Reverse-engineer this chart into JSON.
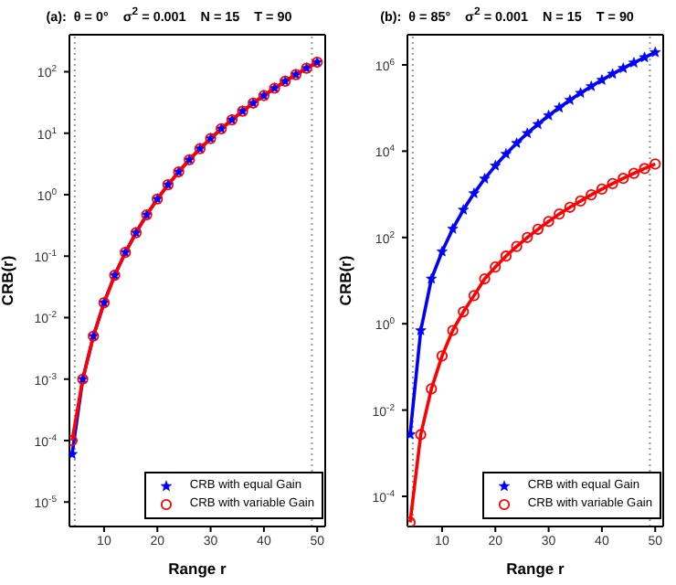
{
  "chart_data": [
    {
      "type": "line",
      "title": "(a):  θ = 0°    σ$^{2}$ = 0.001    N = 15    T = 90",
      "xlabel": "Range  r",
      "ylabel": "CRB(r)",
      "log": "y",
      "legend": "bottom right",
      "line_style": "solid",
      "x": [
        4,
        6,
        8,
        10,
        12,
        14,
        16,
        18,
        20,
        22,
        24,
        26,
        28,
        30,
        32,
        34,
        36,
        38,
        40,
        42,
        44,
        46,
        48,
        50
      ],
      "xlim": [
        3.5,
        51.5
      ],
      "xticks": [
        10,
        20,
        30,
        40,
        50
      ],
      "ylim": [
        4e-06,
        400
      ],
      "yticks": [
        {
          "value": 1e-05,
          "label": "10$^{-5}$"
        },
        {
          "value": 0.0001,
          "label": "10$^{-4}$"
        },
        {
          "value": 0.001,
          "label": "10$^{-3}$"
        },
        {
          "value": 0.01,
          "label": "10$^{-2}$"
        },
        {
          "value": 0.1,
          "label": "10$^{-1}$"
        },
        {
          "value": 1,
          "label": "10$^{0}$"
        },
        {
          "value": 10,
          "label": "10$^{1}$"
        },
        {
          "value": 100,
          "label": "10$^{2}$"
        }
      ],
      "ref_lines": [
        {
          "axis": "x",
          "value": 4.5,
          "color": "#999999",
          "line_style": "dotted"
        },
        {
          "axis": "x",
          "value": 49,
          "color": "#999999",
          "line_style": "dotted"
        }
      ],
      "series": [
        {
          "name": "CRB with equal Gain",
          "color": "#0000ff",
          "marker": "star",
          "values": [
            6e-05,
            0.001,
            0.005,
            0.0175,
            0.049,
            0.115,
            0.24,
            0.47,
            0.85,
            1.45,
            2.35,
            3.7,
            5.6,
            8.2,
            11.8,
            16.5,
            22.8,
            30.9,
            41,
            54,
            70,
            90,
            114,
            143
          ]
        },
        {
          "name": "CRB with variable Gain",
          "color": "#ff0000",
          "marker": "circle",
          "values": [
            0.0001,
            0.001,
            0.005,
            0.0175,
            0.049,
            0.115,
            0.24,
            0.47,
            0.85,
            1.45,
            2.35,
            3.7,
            5.6,
            8.2,
            11.8,
            16.5,
            22.8,
            30.9,
            41,
            54,
            70,
            90,
            114,
            143
          ]
        }
      ]
    },
    {
      "type": "line",
      "title": "(b):  θ = 85°    σ$^{2}$ = 0.001    N = 15    T = 90",
      "xlabel": "Range  r",
      "ylabel": "CRB(r)",
      "log": "y",
      "legend": "bottom right",
      "line_style": "solid",
      "x": [
        4,
        6,
        8,
        10,
        12,
        14,
        16,
        18,
        20,
        22,
        24,
        26,
        28,
        30,
        32,
        34,
        36,
        38,
        40,
        42,
        44,
        46,
        48,
        50
      ],
      "xlim": [
        3.5,
        51.5
      ],
      "xticks": [
        10,
        20,
        30,
        40,
        50
      ],
      "ylim": [
        2e-05,
        5000000
      ],
      "yticks": [
        {
          "value": 0.0001,
          "label": "10$^{-4}$"
        },
        {
          "value": 0.01,
          "label": "10$^{-2}$"
        },
        {
          "value": 1,
          "label": "10$^{0}$"
        },
        {
          "value": 100,
          "label": "10$^{2}$"
        },
        {
          "value": 10000,
          "label": "10$^{4}$"
        },
        {
          "value": 1000000,
          "label": "10$^{6}$"
        }
      ],
      "ref_lines": [
        {
          "axis": "x",
          "value": 4.5,
          "color": "#999999",
          "line_style": "dotted"
        },
        {
          "axis": "x",
          "value": 49,
          "color": "#999999",
          "line_style": "dotted"
        }
      ],
      "series": [
        {
          "name": "CRB with equal Gain",
          "color": "#0000ff",
          "marker": "star",
          "values": [
            0.0027,
            0.7,
            11,
            47,
            158,
            437,
            1050,
            2300,
            4600,
            8600,
            15300,
            26000,
            42000,
            67000,
            102000,
            153000,
            223000,
            318000,
            446000,
            616000,
            837000,
            1120000,
            1490000,
            1950000
          ]
        },
        {
          "name": "CRB with variable Gain",
          "color": "#ff0000",
          "marker": "circle",
          "values": [
            2.5e-05,
            0.0027,
            0.031,
            0.18,
            0.7,
            1.9,
            4.5,
            11,
            20.7,
            37,
            62,
            100,
            155,
            235,
            350,
            500,
            700,
            975,
            1320,
            1770,
            2340,
            3060,
            3950,
            5050
          ]
        }
      ]
    }
  ]
}
